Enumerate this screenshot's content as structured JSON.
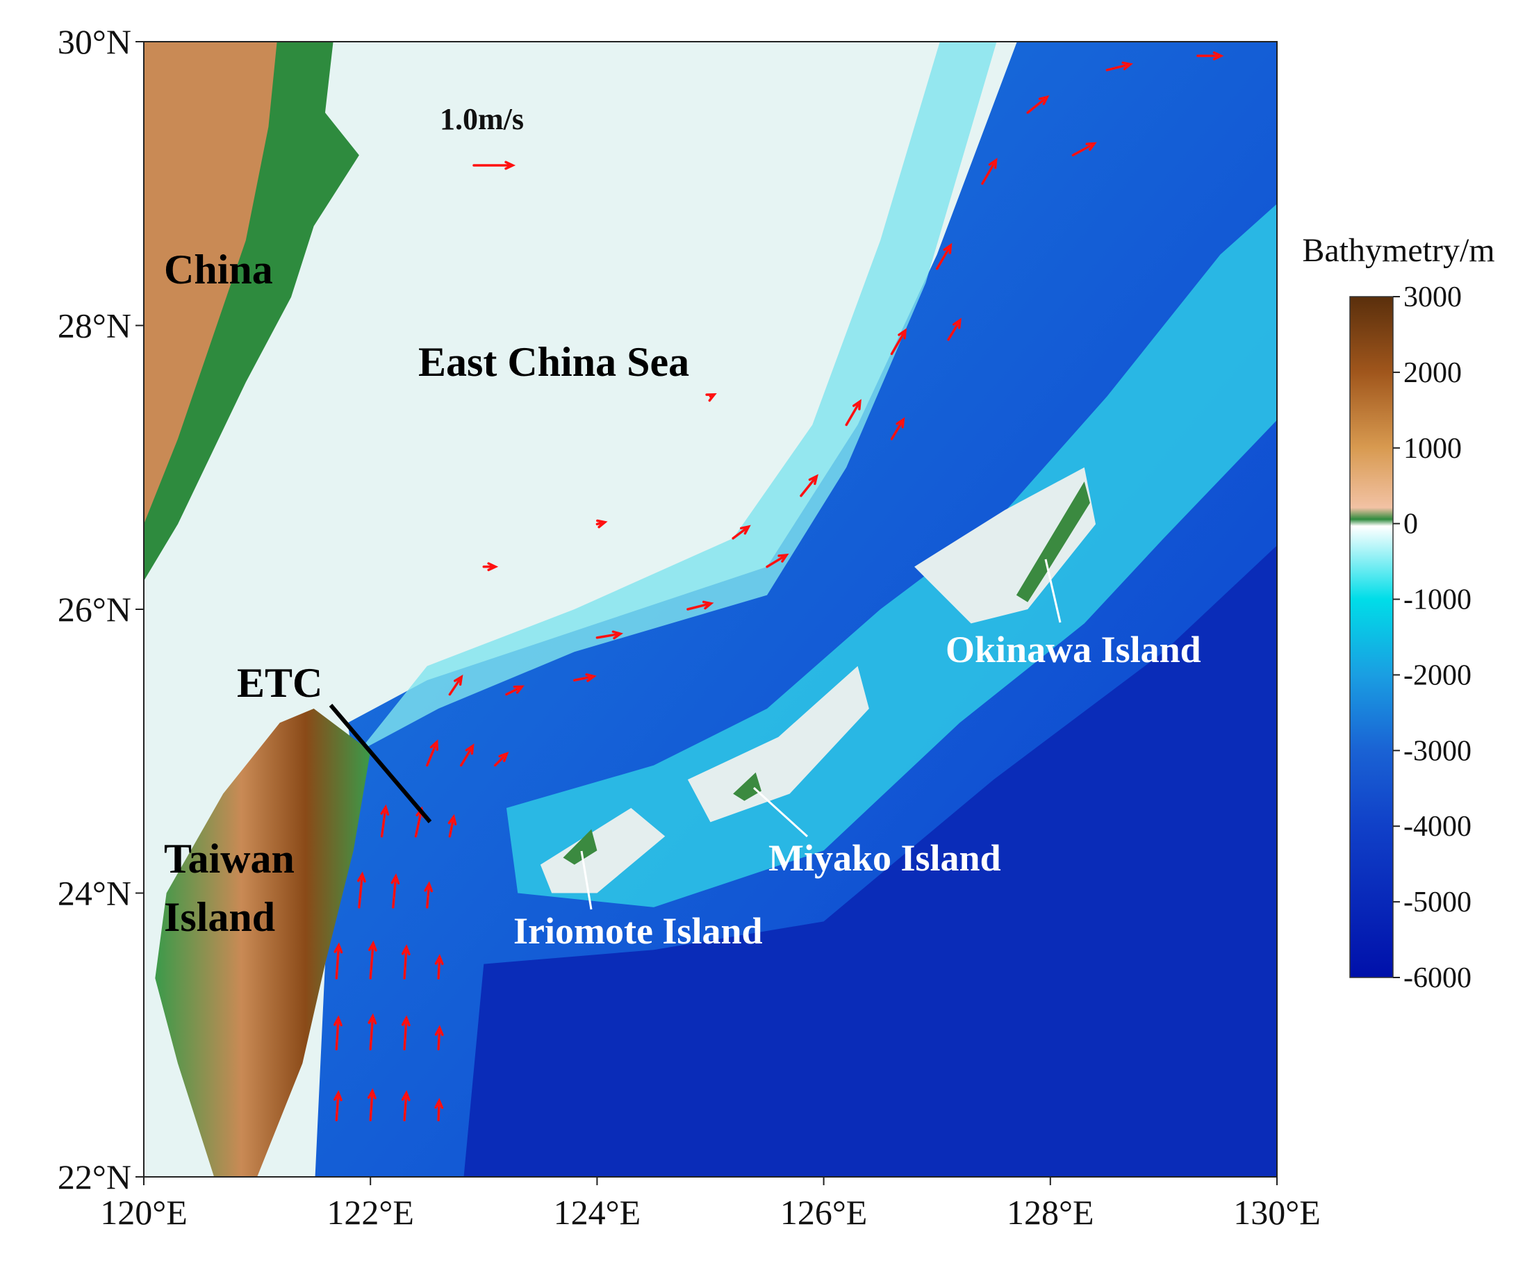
{
  "map": {
    "xlim": [
      120,
      130
    ],
    "ylim": [
      22,
      30
    ],
    "xticks": [
      {
        "value": 120,
        "label": "120°E"
      },
      {
        "value": 122,
        "label": "122°E"
      },
      {
        "value": 124,
        "label": "124°E"
      },
      {
        "value": 126,
        "label": "126°E"
      },
      {
        "value": 128,
        "label": "128°E"
      },
      {
        "value": 130,
        "label": "130°E"
      }
    ],
    "yticks": [
      {
        "value": 22,
        "label": "22°N"
      },
      {
        "value": 24,
        "label": "24°N"
      },
      {
        "value": 26,
        "label": "26°N"
      },
      {
        "value": 28,
        "label": "28°N"
      },
      {
        "value": 30,
        "label": "30°N"
      }
    ],
    "labels": {
      "china": "China",
      "sea": "East China Sea",
      "etc": "ETC",
      "taiwan": [
        "Taiwan",
        "Island"
      ],
      "okinawa": "Okinawa Island",
      "miyako": "Miyako Island",
      "iriomote": "Iriomote Island"
    }
  },
  "colorbar": {
    "title": "Bathymetry/m",
    "lim": [
      -6000,
      3000
    ],
    "ticks": [
      3000,
      2000,
      1000,
      0,
      -1000,
      -2000,
      -3000,
      -4000,
      -5000,
      -6000
    ]
  },
  "quiver": {
    "scale_label": "1.0m/s",
    "scale_value": 1.0,
    "color": "#ff1010",
    "vectors": [
      [
        121.7,
        22.4,
        0.05,
        0.7
      ],
      [
        122.0,
        22.4,
        0.05,
        0.75
      ],
      [
        122.3,
        22.4,
        0.05,
        0.7
      ],
      [
        122.6,
        22.4,
        0.02,
        0.5
      ],
      [
        121.7,
        22.9,
        0.05,
        0.8
      ],
      [
        122.0,
        22.9,
        0.06,
        0.85
      ],
      [
        122.3,
        22.9,
        0.05,
        0.8
      ],
      [
        122.6,
        22.9,
        0.03,
        0.55
      ],
      [
        121.7,
        23.4,
        0.06,
        0.85
      ],
      [
        122.0,
        23.4,
        0.07,
        0.9
      ],
      [
        122.3,
        23.4,
        0.05,
        0.8
      ],
      [
        122.6,
        23.4,
        0.03,
        0.55
      ],
      [
        121.9,
        23.9,
        0.08,
        0.85
      ],
      [
        122.2,
        23.9,
        0.07,
        0.8
      ],
      [
        122.5,
        23.9,
        0.05,
        0.6
      ],
      [
        122.1,
        24.4,
        0.1,
        0.75
      ],
      [
        122.4,
        24.4,
        0.15,
        0.7
      ],
      [
        122.7,
        24.4,
        0.1,
        0.5
      ],
      [
        122.5,
        24.9,
        0.25,
        0.6
      ],
      [
        122.8,
        24.9,
        0.3,
        0.5
      ],
      [
        123.1,
        24.9,
        0.3,
        0.3
      ],
      [
        122.7,
        25.4,
        0.3,
        0.45
      ],
      [
        123.2,
        25.4,
        0.4,
        0.2
      ],
      [
        123.8,
        25.5,
        0.5,
        0.1
      ],
      [
        124.0,
        25.8,
        0.6,
        0.1
      ],
      [
        124.8,
        26.0,
        0.6,
        0.15
      ],
      [
        125.5,
        26.3,
        0.5,
        0.3
      ],
      [
        125.2,
        26.5,
        0.4,
        0.3
      ],
      [
        125.8,
        26.8,
        0.4,
        0.5
      ],
      [
        126.2,
        27.3,
        0.35,
        0.6
      ],
      [
        126.6,
        27.2,
        0.3,
        0.5
      ],
      [
        126.6,
        27.8,
        0.35,
        0.6
      ],
      [
        127.1,
        27.9,
        0.3,
        0.5
      ],
      [
        127.0,
        28.4,
        0.35,
        0.6
      ],
      [
        127.4,
        29.0,
        0.35,
        0.6
      ],
      [
        127.8,
        29.5,
        0.5,
        0.4
      ],
      [
        128.2,
        29.2,
        0.55,
        0.3
      ],
      [
        128.5,
        29.8,
        0.6,
        0.15
      ],
      [
        129.3,
        29.9,
        0.6,
        0.0
      ],
      [
        123.0,
        26.3,
        0.3,
        0.0
      ],
      [
        124.0,
        26.6,
        0.2,
        0.05
      ],
      [
        125.0,
        27.5,
        0.1,
        0.05
      ]
    ]
  }
}
